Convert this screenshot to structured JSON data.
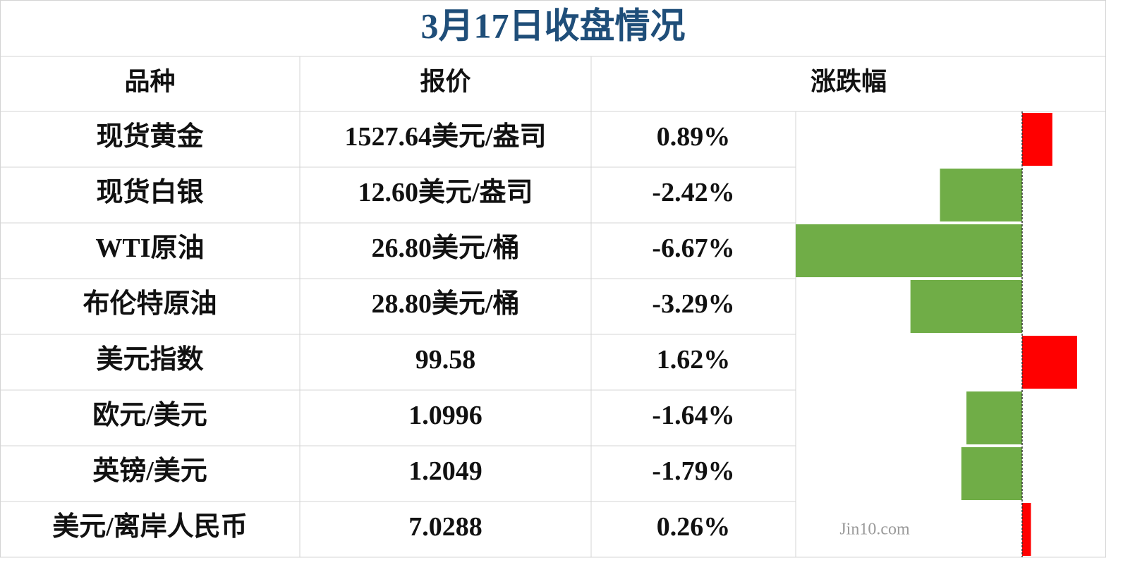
{
  "header": {
    "title": "3月17日收盘情况"
  },
  "table": {
    "columns": [
      "品种",
      "报价",
      "涨跌幅"
    ],
    "rows": [
      {
        "name": "现货黄金",
        "price": "1527.64美元/盎司",
        "change_label": "0.89%",
        "change": 0.89
      },
      {
        "name": "现货白银",
        "price": "12.60美元/盎司",
        "change_label": "-2.42%",
        "change": -2.42
      },
      {
        "name": "WTI原油",
        "price": "26.80美元/桶",
        "change_label": "-6.67%",
        "change": -6.67
      },
      {
        "name": "布伦特原油",
        "price": "28.80美元/桶",
        "change_label": "-3.29%",
        "change": -3.29
      },
      {
        "name": "美元指数",
        "price": "99.58",
        "change_label": "1.62%",
        "change": 1.62
      },
      {
        "name": "欧元/美元",
        "price": "1.0996",
        "change_label": "-1.64%",
        "change": -1.64
      },
      {
        "name": "英镑/美元",
        "price": "1.2049",
        "change_label": "-1.79%",
        "change": -1.79
      },
      {
        "name": "美元/离岸人民币",
        "price": "7.0288",
        "change_label": "0.26%",
        "change": 0.26
      }
    ],
    "up_color": "#ff0000",
    "down_color": "#70ad47"
  },
  "watermark": "Jin10.com"
}
